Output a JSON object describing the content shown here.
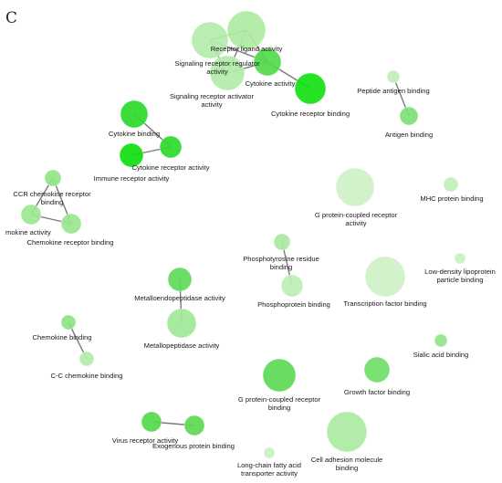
{
  "panel_letter": "C",
  "node_color_scale": {
    "low": "#d4f4cf",
    "high": "#00dd00"
  },
  "nodes": [
    {
      "id": "receptor-ligand-activity",
      "label_lines": [
        "Receptor ligand activity"
      ],
      "color": "#aeeaa3"
    },
    {
      "id": "signaling-receptor-regulator-activity",
      "label_lines": [
        "Signaling receptor regulator",
        "activity"
      ],
      "color": "#b4ecab"
    },
    {
      "id": "signaling-receptor-activator-activity",
      "label_lines": [
        "Signaling receptor activator",
        "activity"
      ],
      "color": "#b2ebaa"
    },
    {
      "id": "cytokine-activity",
      "label_lines": [
        "Cytokine activity"
      ],
      "color": "#52d94c"
    },
    {
      "id": "cytokine-receptor-binding-top",
      "label_lines": [
        "Cytokine receptor binding"
      ],
      "color": "#12df12"
    },
    {
      "id": "peptide-antigen-binding",
      "label_lines": [
        "Peptide antigen binding"
      ],
      "color": "#c2efba"
    },
    {
      "id": "antigen-binding",
      "label_lines": [
        "Antigen binding"
      ],
      "color": "#7fdf75"
    },
    {
      "id": "cytokine-binding",
      "label_lines": [
        "Cytokine binding"
      ],
      "color": "#2bd92b"
    },
    {
      "id": "cytokine-receptor-activity",
      "label_lines": [
        "Cytokine receptor activity"
      ],
      "color": "#2cd92c"
    },
    {
      "id": "immune-receptor-activity",
      "label_lines": [
        "Immune receptor activity"
      ],
      "color": "#0fdd0f"
    },
    {
      "id": "ccr-chemokine-receptor-binding",
      "label_lines": [
        "CCR chemokine receptor",
        "binding"
      ],
      "color": "#90e586"
    },
    {
      "id": "chemokine-activity",
      "label_lines": [
        "mokine activity"
      ],
      "color": "#9de694"
    },
    {
      "id": "chemokine-receptor-binding-left",
      "label_lines": [
        "Chemokine receptor binding"
      ],
      "color": "#98e58f"
    },
    {
      "id": "g-protein-coupled-receptor-activity",
      "label_lines": [
        "G protein-coupled receptor",
        "activity"
      ],
      "color": "#cef1c7"
    },
    {
      "id": "mhc-protein-binding",
      "label_lines": [
        "MHC protein binding"
      ],
      "color": "#c2efba"
    },
    {
      "id": "phosphotyrosine-residue-binding",
      "label_lines": [
        "Phosphotyrosine residue",
        "binding"
      ],
      "color": "#a8e9a0"
    },
    {
      "id": "phosphoprotein-binding",
      "label_lines": [
        "Phosphoprotein binding"
      ],
      "color": "#bdeeb5"
    },
    {
      "id": "transcription-factor-binding",
      "label_lines": [
        "Transcription factor binding"
      ],
      "color": "#cdf1c6"
    },
    {
      "id": "low-density-lipoprotein-particle-binding",
      "label_lines": [
        "Low-density lipoprotein",
        "particle binding"
      ],
      "color": "#c8f0c1"
    },
    {
      "id": "metalloendopeptidase-activity",
      "label_lines": [
        "Metalloendopeptidase activity"
      ],
      "color": "#5fda57"
    },
    {
      "id": "metallopeptidase-activity",
      "label_lines": [
        "Metallopeptidase activity"
      ],
      "color": "#9fe797"
    },
    {
      "id": "chemokine-binding",
      "label_lines": [
        "Chemokine binding"
      ],
      "color": "#8de383"
    },
    {
      "id": "c-c-chemokine-binding",
      "label_lines": [
        "C-C chemokine binding"
      ],
      "color": "#b5ecad"
    },
    {
      "id": "sialic-acid-binding",
      "label_lines": [
        "Sialic acid binding"
      ],
      "color": "#92e489"
    },
    {
      "id": "growth-factor-binding",
      "label_lines": [
        "Growth factor binding"
      ],
      "color": "#70dd67"
    },
    {
      "id": "g-protein-coupled-receptor-binding",
      "label_lines": [
        "G protein-coupled receptor",
        "binding"
      ],
      "color": "#5ed955"
    },
    {
      "id": "virus-receptor-activity",
      "label_lines": [
        "Virus receptor activity"
      ],
      "color": "#54d94b"
    },
    {
      "id": "exogenous-protein-binding",
      "label_lines": [
        "Exogenous protein binding"
      ],
      "color": "#5cd953"
    },
    {
      "id": "long-chain-fatty-acid-transporter-activity",
      "label_lines": [
        "Long-chain fatty acid",
        "transporter activity"
      ],
      "color": "#c8f0c1"
    },
    {
      "id": "cell-adhesion-molecule-binding",
      "label_lines": [
        "Cell adhesion molecule",
        "binding"
      ],
      "color": "#abeaa2"
    }
  ],
  "edges": [
    [
      "receptor-ligand-activity",
      "signaling-receptor-regulator-activity"
    ],
    [
      "receptor-ligand-activity",
      "signaling-receptor-activator-activity"
    ],
    [
      "signaling-receptor-regulator-activity",
      "signaling-receptor-activator-activity"
    ],
    [
      "receptor-ligand-activity",
      "cytokine-activity"
    ],
    [
      "signaling-receptor-regulator-activity",
      "cytokine-activity"
    ],
    [
      "signaling-receptor-activator-activity",
      "cytokine-activity"
    ],
    [
      "cytokine-activity",
      "cytokine-receptor-binding-top"
    ],
    [
      "peptide-antigen-binding",
      "antigen-binding"
    ],
    [
      "cytokine-binding",
      "cytokine-receptor-activity"
    ],
    [
      "cytokine-receptor-activity",
      "immune-receptor-activity"
    ],
    [
      "ccr-chemokine-receptor-binding",
      "chemokine-activity"
    ],
    [
      "ccr-chemokine-receptor-binding",
      "chemokine-receptor-binding-left"
    ],
    [
      "chemokine-activity",
      "chemokine-receptor-binding-left"
    ],
    [
      "phosphotyrosine-residue-binding",
      "phosphoprotein-binding"
    ],
    [
      "metalloendopeptidase-activity",
      "metallopeptidase-activity"
    ],
    [
      "chemokine-binding",
      "c-c-chemokine-binding"
    ],
    [
      "virus-receptor-activity",
      "exogenous-protein-binding"
    ]
  ]
}
